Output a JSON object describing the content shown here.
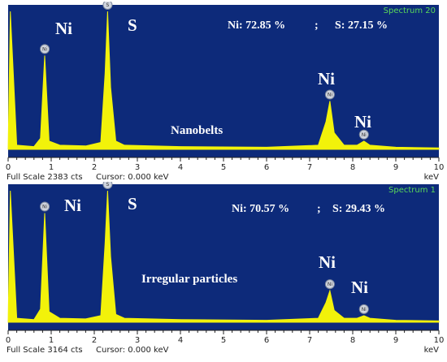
{
  "chart_data": [
    {
      "type": "line",
      "spectrum_label": "Spectrum 20",
      "xlabel": "keV",
      "xlim": [
        0,
        10
      ],
      "x_ticks": [
        "0",
        "1",
        "2",
        "3",
        "4",
        "5",
        "6",
        "7",
        "8",
        "9",
        "10"
      ],
      "colors": {
        "background": "#0d2a7a",
        "fill": "#f2f20a"
      },
      "composition_text": {
        "ni": "Ni: 72.85 %",
        "sep": ";",
        "s": "S: 27.15 %"
      },
      "sample_label": "Nanobelts",
      "peak_labels": [
        {
          "element": "Ni",
          "badge": "Ni",
          "energy": 0.85,
          "height": 0.68
        },
        {
          "element": "S",
          "badge": "S",
          "energy": 2.31,
          "height": 1.0
        },
        {
          "element": "Ni",
          "badge": "Ni",
          "energy": 7.47,
          "height": 0.35
        },
        {
          "element": "Ni",
          "badge": "Ni",
          "energy": 8.26,
          "height": 0.06
        }
      ],
      "full_scale": "Full Scale 2383 cts",
      "cursor": "Cursor: 0.000 keV",
      "spectrum_points": [
        [
          0.05,
          1.0
        ],
        [
          0.2,
          0.03
        ],
        [
          0.6,
          0.02
        ],
        [
          0.75,
          0.08
        ],
        [
          0.85,
          0.68
        ],
        [
          0.95,
          0.06
        ],
        [
          1.2,
          0.03
        ],
        [
          1.8,
          0.025
        ],
        [
          2.15,
          0.05
        ],
        [
          2.25,
          0.55
        ],
        [
          2.31,
          1.0
        ],
        [
          2.38,
          0.45
        ],
        [
          2.5,
          0.06
        ],
        [
          2.7,
          0.03
        ],
        [
          4.0,
          0.02
        ],
        [
          6.0,
          0.015
        ],
        [
          7.2,
          0.03
        ],
        [
          7.38,
          0.2
        ],
        [
          7.47,
          0.35
        ],
        [
          7.57,
          0.12
        ],
        [
          7.8,
          0.03
        ],
        [
          8.1,
          0.03
        ],
        [
          8.26,
          0.06
        ],
        [
          8.4,
          0.03
        ],
        [
          9.0,
          0.015
        ],
        [
          10.0,
          0.01
        ]
      ]
    },
    {
      "type": "line",
      "spectrum_label": "Spectrum 1",
      "xlabel": "keV",
      "xlim": [
        0,
        10
      ],
      "x_ticks": [
        "0",
        "1",
        "2",
        "3",
        "4",
        "5",
        "6",
        "7",
        "8",
        "9",
        "10"
      ],
      "colors": {
        "background": "#0d2a7a",
        "fill": "#f2f20a"
      },
      "composition_text": {
        "ni": "Ni: 70.57 %",
        "sep": ";",
        "s": "S: 29.43 %"
      },
      "sample_label": "Irregular particles",
      "peak_labels": [
        {
          "element": "Ni",
          "badge": "Ni",
          "energy": 0.85,
          "height": 0.83
        },
        {
          "element": "S",
          "badge": "S",
          "energy": 2.31,
          "height": 1.0
        },
        {
          "element": "Ni",
          "badge": "Ni",
          "energy": 7.47,
          "height": 0.24
        },
        {
          "element": "Ni",
          "badge": "Ni",
          "energy": 8.26,
          "height": 0.05
        }
      ],
      "full_scale": "Full Scale 3164 cts",
      "cursor": "Cursor: 0.000 keV",
      "spectrum_points": [
        [
          0.05,
          1.0
        ],
        [
          0.2,
          0.03
        ],
        [
          0.6,
          0.02
        ],
        [
          0.75,
          0.1
        ],
        [
          0.85,
          0.83
        ],
        [
          0.95,
          0.08
        ],
        [
          1.2,
          0.03
        ],
        [
          1.8,
          0.025
        ],
        [
          2.15,
          0.05
        ],
        [
          2.25,
          0.6
        ],
        [
          2.31,
          1.0
        ],
        [
          2.38,
          0.5
        ],
        [
          2.5,
          0.06
        ],
        [
          2.7,
          0.03
        ],
        [
          4.0,
          0.02
        ],
        [
          6.0,
          0.015
        ],
        [
          7.2,
          0.03
        ],
        [
          7.38,
          0.15
        ],
        [
          7.47,
          0.24
        ],
        [
          7.57,
          0.09
        ],
        [
          7.8,
          0.03
        ],
        [
          8.1,
          0.03
        ],
        [
          8.26,
          0.05
        ],
        [
          8.4,
          0.03
        ],
        [
          9.0,
          0.015
        ],
        [
          10.0,
          0.01
        ]
      ]
    }
  ]
}
